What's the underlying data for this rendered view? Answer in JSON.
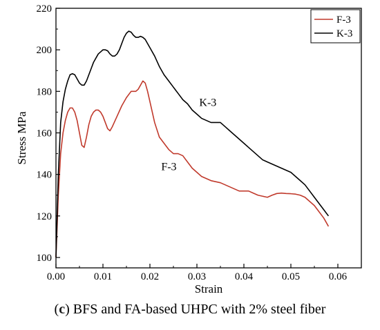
{
  "chart_data": {
    "type": "line",
    "xlabel": "Strain",
    "ylabel": "Stress MPa",
    "xlim": [
      0.0,
      0.065
    ],
    "ylim": [
      95,
      220
    ],
    "xticks": [
      "0.00",
      "0.01",
      "0.02",
      "0.03",
      "0.04",
      "0.05",
      "0.06"
    ],
    "xtick_values": [
      0.0,
      0.01,
      0.02,
      0.03,
      0.04,
      0.05,
      0.06
    ],
    "yticks": [
      "100",
      "120",
      "140",
      "160",
      "180",
      "200",
      "220"
    ],
    "ytick_values": [
      100,
      120,
      140,
      160,
      180,
      200,
      220
    ],
    "grid": false,
    "legend_position": "top-right",
    "series": [
      {
        "name": "F-3",
        "color": "#c0392b",
        "x": [
          0.0,
          0.0005,
          0.001,
          0.0015,
          0.002,
          0.0025,
          0.003,
          0.0035,
          0.004,
          0.0045,
          0.005,
          0.0055,
          0.006,
          0.0065,
          0.007,
          0.0075,
          0.008,
          0.0085,
          0.009,
          0.0095,
          0.01,
          0.0105,
          0.011,
          0.0115,
          0.012,
          0.013,
          0.014,
          0.015,
          0.016,
          0.017,
          0.0175,
          0.018,
          0.0185,
          0.019,
          0.0195,
          0.02,
          0.021,
          0.022,
          0.023,
          0.024,
          0.025,
          0.026,
          0.027,
          0.028,
          0.029,
          0.03,
          0.031,
          0.032,
          0.033,
          0.034,
          0.035,
          0.036,
          0.037,
          0.038,
          0.039,
          0.04,
          0.041,
          0.042,
          0.043,
          0.044,
          0.045,
          0.046,
          0.047,
          0.048,
          0.049,
          0.05,
          0.051,
          0.052,
          0.053,
          0.054,
          0.055,
          0.056,
          0.057,
          0.058
        ],
        "y": [
          100,
          130,
          150,
          160,
          166,
          170,
          172,
          172,
          170,
          166,
          160,
          154,
          153,
          158,
          164,
          168,
          170,
          171,
          171,
          170,
          168,
          165,
          162,
          161,
          163,
          168,
          173,
          177,
          180,
          180,
          181,
          183,
          185,
          184,
          180,
          175,
          165,
          158,
          155,
          152,
          150,
          150,
          149,
          146,
          143,
          141,
          139,
          138,
          137,
          136.5,
          136,
          135,
          134,
          133,
          132,
          132,
          132,
          131,
          130,
          129.5,
          129,
          130,
          130.8,
          131,
          130.8,
          130.7,
          130.5,
          130,
          129,
          127,
          125,
          122,
          119,
          115
        ]
      },
      {
        "name": "K-3",
        "color": "#000000",
        "x": [
          0.0,
          0.0005,
          0.001,
          0.0015,
          0.002,
          0.0025,
          0.003,
          0.0035,
          0.004,
          0.0045,
          0.005,
          0.0055,
          0.006,
          0.0065,
          0.007,
          0.0075,
          0.008,
          0.0085,
          0.009,
          0.0095,
          0.01,
          0.0105,
          0.011,
          0.0115,
          0.012,
          0.0125,
          0.013,
          0.0135,
          0.014,
          0.0145,
          0.015,
          0.0155,
          0.016,
          0.0165,
          0.017,
          0.0175,
          0.018,
          0.0185,
          0.019,
          0.0195,
          0.02,
          0.021,
          0.022,
          0.023,
          0.024,
          0.025,
          0.026,
          0.027,
          0.028,
          0.029,
          0.03,
          0.031,
          0.032,
          0.033,
          0.034,
          0.035,
          0.036,
          0.037,
          0.038,
          0.039,
          0.04,
          0.041,
          0.042,
          0.043,
          0.044,
          0.045,
          0.046,
          0.047,
          0.048,
          0.049,
          0.05,
          0.051,
          0.052,
          0.053,
          0.054,
          0.055,
          0.056,
          0.057,
          0.058
        ],
        "y": [
          100,
          140,
          165,
          175,
          181,
          185,
          188,
          188.5,
          188,
          186,
          184,
          183,
          183,
          185,
          188,
          191,
          194,
          196,
          198,
          199,
          200,
          200,
          199.5,
          198,
          197,
          197,
          198,
          200,
          203,
          206,
          208,
          209,
          208.5,
          207,
          206,
          206,
          206.5,
          206,
          205,
          203,
          201,
          197,
          192,
          188,
          185,
          182,
          179,
          176,
          174,
          171,
          169,
          167,
          166,
          165,
          165,
          165,
          163,
          161,
          159,
          157,
          155,
          153,
          151,
          149,
          147,
          146,
          145,
          144,
          143,
          142,
          141,
          139,
          137,
          135,
          132,
          129,
          126,
          123,
          120
        ]
      }
    ],
    "annotations": [
      {
        "text": "K-3",
        "x": 0.0305,
        "y": 173
      },
      {
        "text": "F-3",
        "x": 0.0224,
        "y": 142
      }
    ]
  },
  "caption": {
    "letter": "c",
    "text": "BFS and FA-based UHPC with 2% steel fiber"
  }
}
